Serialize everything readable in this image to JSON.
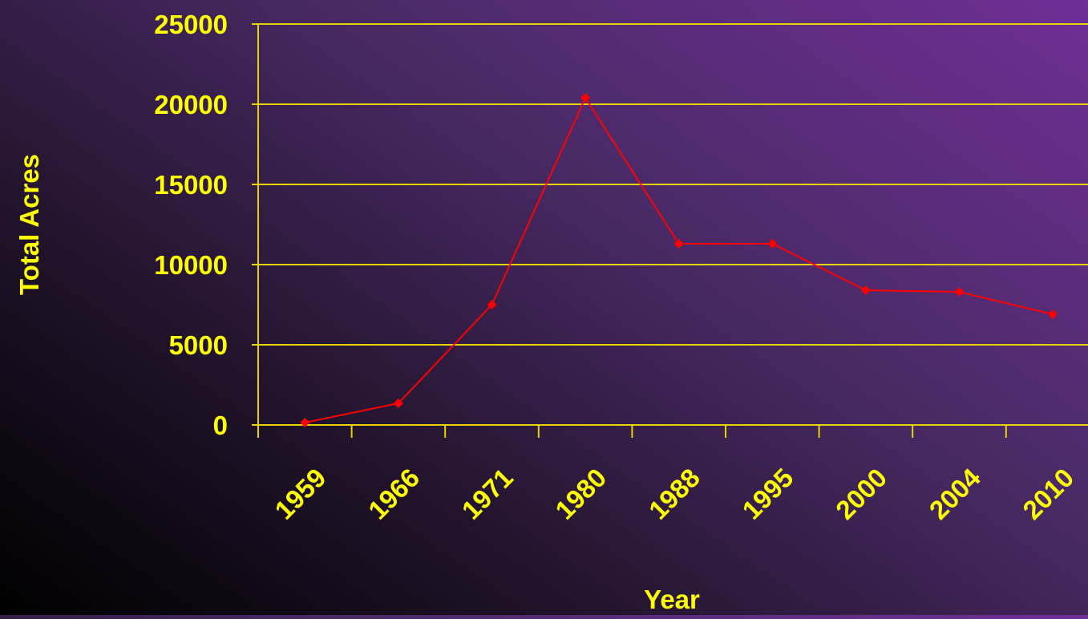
{
  "chart_data": {
    "type": "line",
    "categories": [
      "1959",
      "1966",
      "1971",
      "1980",
      "1988",
      "1995",
      "2000",
      "2004",
      "2010"
    ],
    "series": [
      {
        "values": [
          150,
          1350,
          7500,
          20400,
          11300,
          11300,
          8400,
          8300,
          6900
        ]
      }
    ],
    "y_ticks": [
      "0",
      "5000",
      "10000",
      "15000",
      "20000",
      "25000"
    ],
    "ylim": [
      0,
      25000
    ],
    "xlabel": "Year",
    "ylabel": "Total Acres",
    "grid": "horizontal",
    "colors": {
      "axis_text": "#ffff00",
      "gridline": "#e6d400",
      "series": "#ff0000"
    }
  }
}
